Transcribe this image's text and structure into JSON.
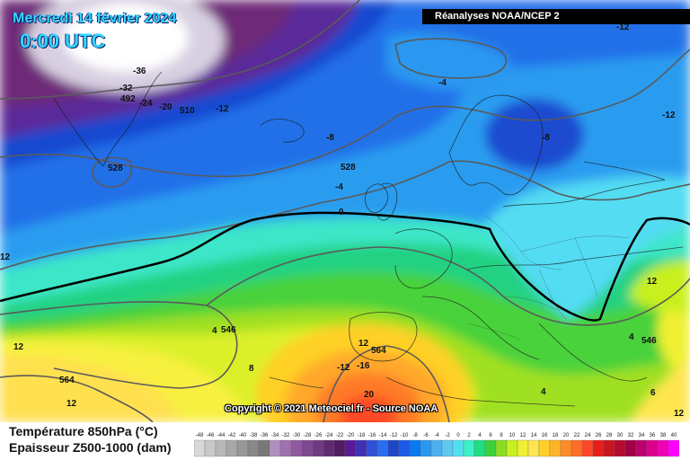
{
  "title": {
    "date": "Mercredi 14 février 2024",
    "time": "0:00 UTC"
  },
  "source": "Réanalyses NOAA/NCEP 2",
  "copyright": "Copyright © 2021 Meteociel.fr - Source NOAA",
  "legend": {
    "line1": "Température 850hPa (°C)",
    "line2": "Epaisseur Z500-1000 (dam)",
    "scale_ticks": [
      "-48",
      "-46",
      "-44",
      "-42",
      "-40",
      "-38",
      "-36",
      "-34",
      "-32",
      "-30",
      "-28",
      "-26",
      "-24",
      "-22",
      "-20",
      "-18",
      "-16",
      "-14",
      "-12",
      "-10",
      "-8",
      "-6",
      "-4",
      "-2",
      "0",
      "2",
      "4",
      "6",
      "8",
      "10",
      "12",
      "14",
      "16",
      "18",
      "20",
      "22",
      "24",
      "26",
      "28",
      "30",
      "32",
      "34",
      "36",
      "38",
      "40"
    ],
    "scale_colors": [
      "#d8d8d8",
      "#c8c8c8",
      "#b8b8b8",
      "#a8a8a8",
      "#989898",
      "#888888",
      "#787878",
      "#b090c0",
      "#a070b0",
      "#905aa0",
      "#804890",
      "#703a82",
      "#602a72",
      "#501c62",
      "#5a1a96",
      "#4030b4",
      "#3050d8",
      "#2a6ef0",
      "#1f46c8",
      "#1a5ae6",
      "#0a78f0",
      "#2a98f0",
      "#4cb0f0",
      "#60c8f0",
      "#52e0f0",
      "#3cf0c8",
      "#20dc82",
      "#3cd23c",
      "#8cdc20",
      "#c8f01e",
      "#f0f032",
      "#ffe650",
      "#ffd028",
      "#ffb428",
      "#ff8c28",
      "#ff6e28",
      "#ff4628",
      "#e61e1e",
      "#c8141e",
      "#b40a32",
      "#a00046",
      "#be006e",
      "#dc008c",
      "#f000b4",
      "#ff00ff"
    ]
  },
  "colors": {
    "contour": "#5a5a5a",
    "zero_isotherm": "#000000",
    "title_text": "#2fd8ff"
  },
  "contour_labels": {
    "temperature": [
      "-36",
      "-32",
      "-24",
      "-20",
      "-12",
      "-8",
      "-4",
      "-4",
      "-8",
      "-12",
      "-12",
      "0",
      "4",
      "4",
      "4",
      "8",
      "12",
      "12",
      "12",
      "12",
      "12",
      "12",
      "-12",
      "-16",
      "20",
      "6"
    ],
    "thickness": [
      "492",
      "510",
      "528",
      "528",
      "546",
      "546",
      "564",
      "564"
    ]
  }
}
